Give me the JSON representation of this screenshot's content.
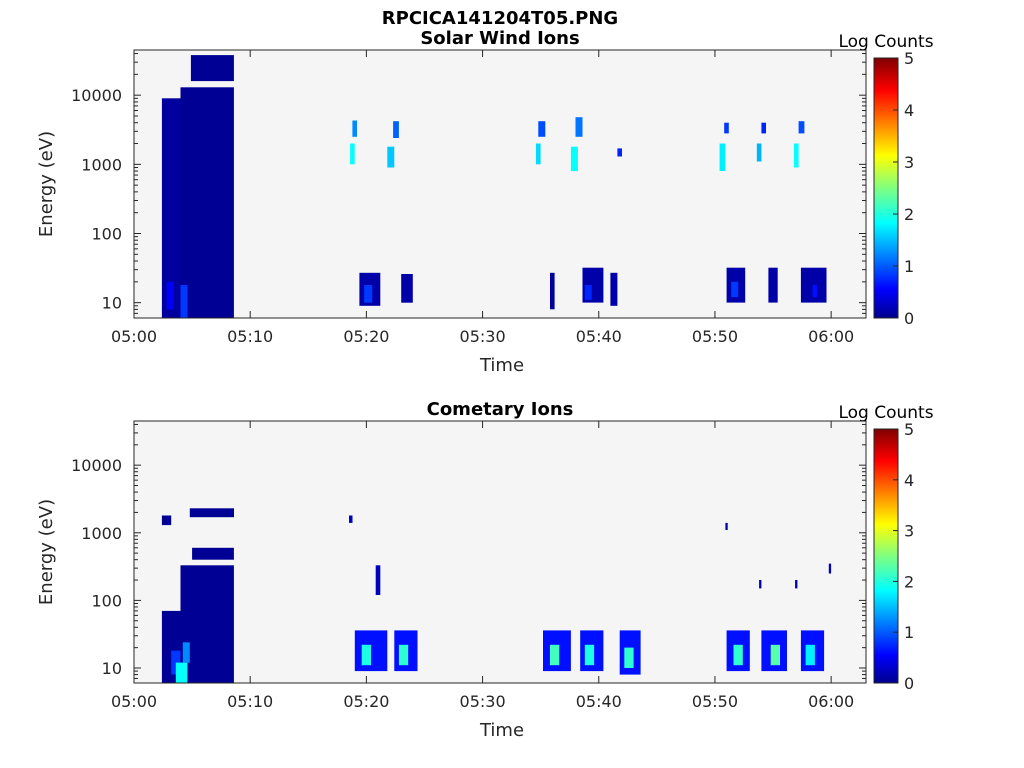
{
  "figure_title": "RPCICA141204T05.PNG",
  "colors": {
    "background": "#ffffff",
    "axes_bg": "#f5f5f5",
    "grey_axis": "#262626",
    "colormap": "jet",
    "data_min_color": "#00008f"
  },
  "chart_data": [
    {
      "type": "heatmap",
      "title": "Solar Wind Ions",
      "xlabel": "Time",
      "ylabel": "Energy (eV)",
      "yscale": "log",
      "ylim": [
        6,
        45000
      ],
      "xlim": [
        "05:00",
        "06:03"
      ],
      "xticks": [
        "05:00",
        "05:10",
        "05:20",
        "05:30",
        "05:40",
        "05:50",
        "06:00"
      ],
      "yticks": [
        "10",
        "100",
        "1000",
        "10000"
      ],
      "colorbar": {
        "label": "Log Counts",
        "range": [
          0,
          5
        ],
        "ticks": [
          "0",
          "1",
          "2",
          "3",
          "4",
          "5"
        ]
      },
      "grid": false,
      "blocks": [
        {
          "t0": 2.4,
          "t1": 4.0,
          "e0": 6,
          "e1": 9000,
          "v": 0.15
        },
        {
          "t0": 4.0,
          "t1": 8.6,
          "e0": 6,
          "e1": 13000,
          "v": 0.1
        },
        {
          "t0": 4.9,
          "t1": 8.6,
          "e0": 16000,
          "e1": 38000,
          "v": 0.1
        },
        {
          "t0": 2.8,
          "t1": 3.4,
          "e0": 8,
          "e1": 20,
          "v": 0.6
        },
        {
          "t0": 4.0,
          "t1": 4.6,
          "e0": 6,
          "e1": 18,
          "v": 0.9
        },
        {
          "t0": 18.6,
          "t1": 19.0,
          "e0": 1000,
          "e1": 2000,
          "v": 1.9
        },
        {
          "t0": 18.8,
          "t1": 19.2,
          "e0": 2500,
          "e1": 4300,
          "v": 1.3
        },
        {
          "t0": 21.8,
          "t1": 22.4,
          "e0": 900,
          "e1": 1800,
          "v": 1.6
        },
        {
          "t0": 22.3,
          "t1": 22.8,
          "e0": 2400,
          "e1": 4200,
          "v": 1.1
        },
        {
          "t0": 34.6,
          "t1": 35.0,
          "e0": 1000,
          "e1": 2000,
          "v": 1.7
        },
        {
          "t0": 34.8,
          "t1": 35.4,
          "e0": 2500,
          "e1": 4200,
          "v": 1.0
        },
        {
          "t0": 37.6,
          "t1": 38.2,
          "e0": 800,
          "e1": 1800,
          "v": 1.9
        },
        {
          "t0": 38.0,
          "t1": 38.6,
          "e0": 2500,
          "e1": 4800,
          "v": 1.2
        },
        {
          "t0": 41.6,
          "t1": 42.0,
          "e0": 1300,
          "e1": 1700,
          "v": 0.8
        },
        {
          "t0": 50.4,
          "t1": 50.9,
          "e0": 800,
          "e1": 2000,
          "v": 1.8
        },
        {
          "t0": 50.8,
          "t1": 51.2,
          "e0": 2800,
          "e1": 4000,
          "v": 0.9
        },
        {
          "t0": 53.6,
          "t1": 54.0,
          "e0": 1100,
          "e1": 2000,
          "v": 1.5
        },
        {
          "t0": 54.0,
          "t1": 54.4,
          "e0": 2800,
          "e1": 4000,
          "v": 0.8
        },
        {
          "t0": 56.8,
          "t1": 57.2,
          "e0": 900,
          "e1": 2000,
          "v": 1.9
        },
        {
          "t0": 57.2,
          "t1": 57.7,
          "e0": 2800,
          "e1": 4200,
          "v": 1.0
        },
        {
          "t0": 19.4,
          "t1": 21.2,
          "e0": 9,
          "e1": 27,
          "v": 0.2
        },
        {
          "t0": 19.8,
          "t1": 20.5,
          "e0": 10,
          "e1": 18,
          "v": 0.9
        },
        {
          "t0": 23.0,
          "t1": 24.0,
          "e0": 10,
          "e1": 26,
          "v": 0.2
        },
        {
          "t0": 35.8,
          "t1": 36.2,
          "e0": 8,
          "e1": 27,
          "v": 0.15
        },
        {
          "t0": 38.6,
          "t1": 40.4,
          "e0": 10,
          "e1": 32,
          "v": 0.2
        },
        {
          "t0": 38.8,
          "t1": 39.4,
          "e0": 11,
          "e1": 18,
          "v": 0.8
        },
        {
          "t0": 41.0,
          "t1": 41.6,
          "e0": 9,
          "e1": 27,
          "v": 0.2
        },
        {
          "t0": 51.0,
          "t1": 52.6,
          "e0": 10,
          "e1": 32,
          "v": 0.2
        },
        {
          "t0": 51.4,
          "t1": 52.0,
          "e0": 12,
          "e1": 20,
          "v": 0.9
        },
        {
          "t0": 54.6,
          "t1": 55.4,
          "e0": 10,
          "e1": 32,
          "v": 0.2
        },
        {
          "t0": 57.4,
          "t1": 59.6,
          "e0": 10,
          "e1": 32,
          "v": 0.2
        },
        {
          "t0": 58.4,
          "t1": 58.8,
          "e0": 12,
          "e1": 18,
          "v": 0.7
        }
      ]
    },
    {
      "type": "heatmap",
      "title": "Cometary Ions",
      "xlabel": "Time",
      "ylabel": "Energy (eV)",
      "yscale": "log",
      "ylim": [
        6,
        45000
      ],
      "xlim": [
        "05:00",
        "06:03"
      ],
      "xticks": [
        "05:00",
        "05:10",
        "05:20",
        "05:30",
        "05:40",
        "05:50",
        "06:00"
      ],
      "yticks": [
        "10",
        "100",
        "1000",
        "10000"
      ],
      "colorbar": {
        "label": "Log Counts",
        "range": [
          0,
          5
        ],
        "ticks": [
          "0",
          "1",
          "2",
          "3",
          "4",
          "5"
        ]
      },
      "grid": false,
      "blocks": [
        {
          "t0": 2.4,
          "t1": 4.0,
          "e0": 6,
          "e1": 70,
          "v": 0.1
        },
        {
          "t0": 2.4,
          "t1": 3.2,
          "e0": 1300,
          "e1": 1800,
          "v": 0.1
        },
        {
          "t0": 4.0,
          "t1": 8.6,
          "e0": 6,
          "e1": 330,
          "v": 0.1
        },
        {
          "t0": 5.0,
          "t1": 8.6,
          "e0": 400,
          "e1": 600,
          "v": 0.1
        },
        {
          "t0": 4.8,
          "t1": 8.6,
          "e0": 1700,
          "e1": 2300,
          "v": 0.1
        },
        {
          "t0": 3.2,
          "t1": 4.0,
          "e0": 8,
          "e1": 18,
          "v": 0.9
        },
        {
          "t0": 3.6,
          "t1": 4.6,
          "e0": 6,
          "e1": 12,
          "v": 1.9
        },
        {
          "t0": 4.2,
          "t1": 4.8,
          "e0": 12,
          "e1": 24,
          "v": 1.3
        },
        {
          "t0": 19.0,
          "t1": 21.8,
          "e0": 9,
          "e1": 36,
          "v": 0.7
        },
        {
          "t0": 19.6,
          "t1": 20.4,
          "e0": 11,
          "e1": 22,
          "v": 2.0
        },
        {
          "t0": 22.4,
          "t1": 24.4,
          "e0": 9,
          "e1": 36,
          "v": 0.7
        },
        {
          "t0": 22.8,
          "t1": 23.6,
          "e0": 11,
          "e1": 22,
          "v": 2.1
        },
        {
          "t0": 35.2,
          "t1": 37.6,
          "e0": 9,
          "e1": 36,
          "v": 0.7
        },
        {
          "t0": 35.8,
          "t1": 36.6,
          "e0": 11,
          "e1": 22,
          "v": 2.2
        },
        {
          "t0": 38.4,
          "t1": 40.4,
          "e0": 9,
          "e1": 36,
          "v": 0.7
        },
        {
          "t0": 38.8,
          "t1": 39.6,
          "e0": 11,
          "e1": 22,
          "v": 2.0
        },
        {
          "t0": 41.8,
          "t1": 43.6,
          "e0": 8,
          "e1": 36,
          "v": 0.7
        },
        {
          "t0": 42.2,
          "t1": 43.0,
          "e0": 10,
          "e1": 20,
          "v": 2.1
        },
        {
          "t0": 51.0,
          "t1": 53.0,
          "e0": 9,
          "e1": 36,
          "v": 0.7
        },
        {
          "t0": 51.6,
          "t1": 52.4,
          "e0": 11,
          "e1": 22,
          "v": 2.1
        },
        {
          "t0": 54.0,
          "t1": 56.2,
          "e0": 9,
          "e1": 36,
          "v": 0.7
        },
        {
          "t0": 54.8,
          "t1": 55.6,
          "e0": 11,
          "e1": 22,
          "v": 2.3
        },
        {
          "t0": 57.4,
          "t1": 59.4,
          "e0": 9,
          "e1": 36,
          "v": 0.7
        },
        {
          "t0": 57.8,
          "t1": 58.6,
          "e0": 11,
          "e1": 22,
          "v": 1.8
        },
        {
          "t0": 18.5,
          "t1": 18.8,
          "e0": 1400,
          "e1": 1800,
          "v": 0.3
        },
        {
          "t0": 50.9,
          "t1": 51.1,
          "e0": 1100,
          "e1": 1400,
          "v": 0.2
        },
        {
          "t0": 20.8,
          "t1": 21.2,
          "e0": 120,
          "e1": 330,
          "v": 0.3
        },
        {
          "t0": 53.8,
          "t1": 54.0,
          "e0": 150,
          "e1": 200,
          "v": 0.2
        },
        {
          "t0": 56.9,
          "t1": 57.1,
          "e0": 150,
          "e1": 200,
          "v": 0.2
        },
        {
          "t0": 59.8,
          "t1": 60.0,
          "e0": 250,
          "e1": 350,
          "v": 0.3
        }
      ]
    }
  ]
}
